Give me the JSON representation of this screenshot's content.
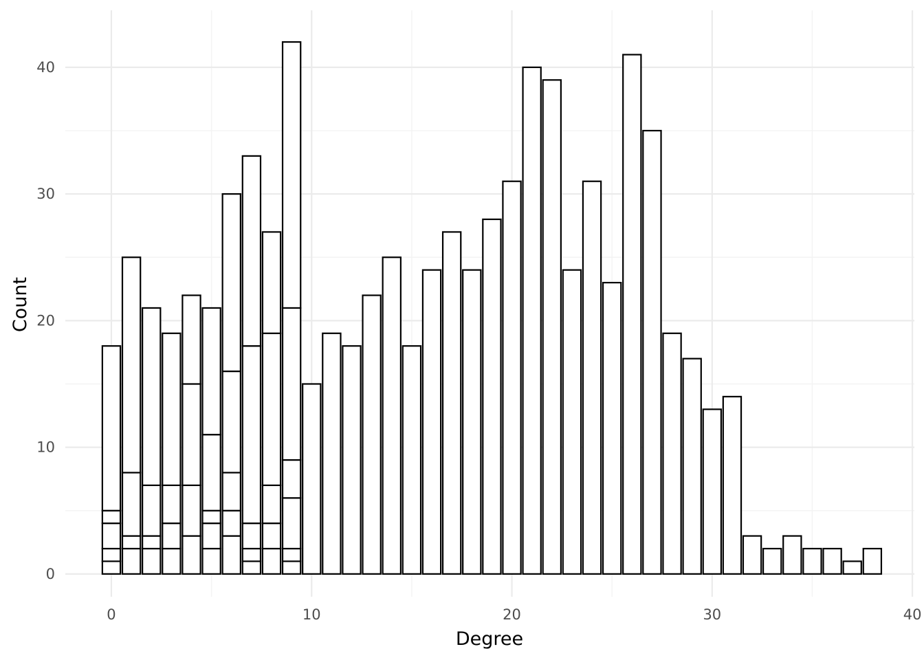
{
  "chart_data": {
    "type": "bar",
    "stacked": true,
    "xlabel": "Degree",
    "ylabel": "Count",
    "xlim": [
      -2.3,
      40.1
    ],
    "ylim": [
      -1.8,
      44.5
    ],
    "x_ticks": [
      0,
      10,
      20,
      30,
      40
    ],
    "y_ticks": [
      0,
      10,
      20,
      30,
      40
    ],
    "grid": true,
    "legend": "none",
    "colors": {
      "fill": "#ffffff",
      "outline": "#000000",
      "grid": "#ebebeb"
    },
    "bars": [
      {
        "x": 0,
        "segments": [
          1,
          1,
          2,
          1,
          13
        ]
      },
      {
        "x": 1,
        "segments": [
          2,
          1,
          5,
          17
        ]
      },
      {
        "x": 2,
        "segments": [
          2,
          1,
          4,
          14
        ]
      },
      {
        "x": 3,
        "segments": [
          2,
          2,
          3,
          12
        ]
      },
      {
        "x": 4,
        "segments": [
          3,
          4,
          8,
          7
        ]
      },
      {
        "x": 5,
        "segments": [
          2,
          2,
          1,
          6,
          10
        ]
      },
      {
        "x": 6,
        "segments": [
          3,
          2,
          3,
          8,
          14
        ]
      },
      {
        "x": 7,
        "segments": [
          1,
          1,
          2,
          14,
          15
        ]
      },
      {
        "x": 8,
        "segments": [
          2,
          2,
          3,
          12,
          8
        ]
      },
      {
        "x": 9,
        "segments": [
          1,
          1,
          4,
          3,
          12,
          21
        ]
      },
      {
        "x": 10,
        "segments": [
          15
        ]
      },
      {
        "x": 11,
        "segments": [
          19
        ]
      },
      {
        "x": 12,
        "segments": [
          18
        ]
      },
      {
        "x": 13,
        "segments": [
          22
        ]
      },
      {
        "x": 14,
        "segments": [
          25
        ]
      },
      {
        "x": 15,
        "segments": [
          18
        ]
      },
      {
        "x": 16,
        "segments": [
          24
        ]
      },
      {
        "x": 17,
        "segments": [
          27
        ]
      },
      {
        "x": 18,
        "segments": [
          24
        ]
      },
      {
        "x": 19,
        "segments": [
          28
        ]
      },
      {
        "x": 20,
        "segments": [
          31
        ]
      },
      {
        "x": 21,
        "segments": [
          40
        ]
      },
      {
        "x": 22,
        "segments": [
          39
        ]
      },
      {
        "x": 23,
        "segments": [
          24
        ]
      },
      {
        "x": 24,
        "segments": [
          31
        ]
      },
      {
        "x": 25,
        "segments": [
          23
        ]
      },
      {
        "x": 26,
        "segments": [
          41
        ]
      },
      {
        "x": 27,
        "segments": [
          35
        ]
      },
      {
        "x": 28,
        "segments": [
          19
        ]
      },
      {
        "x": 29,
        "segments": [
          17
        ]
      },
      {
        "x": 30,
        "segments": [
          13
        ]
      },
      {
        "x": 31,
        "segments": [
          14
        ]
      },
      {
        "x": 32,
        "segments": [
          3
        ]
      },
      {
        "x": 33,
        "segments": [
          2
        ]
      },
      {
        "x": 34,
        "segments": [
          3
        ]
      },
      {
        "x": 35,
        "segments": [
          2
        ]
      },
      {
        "x": 36,
        "segments": [
          2
        ]
      },
      {
        "x": 37,
        "segments": [
          1
        ]
      },
      {
        "x": 38,
        "segments": [
          2
        ]
      }
    ]
  }
}
